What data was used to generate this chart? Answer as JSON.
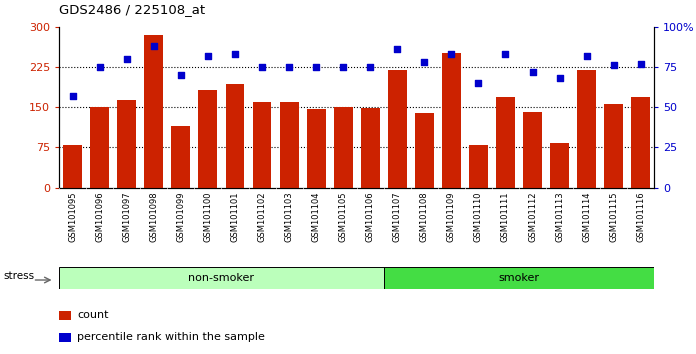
{
  "title": "GDS2486 / 225108_at",
  "samples": [
    "GSM101095",
    "GSM101096",
    "GSM101097",
    "GSM101098",
    "GSM101099",
    "GSM101100",
    "GSM101101",
    "GSM101102",
    "GSM101103",
    "GSM101104",
    "GSM101105",
    "GSM101106",
    "GSM101107",
    "GSM101108",
    "GSM101109",
    "GSM101110",
    "GSM101111",
    "GSM101112",
    "GSM101113",
    "GSM101114",
    "GSM101115",
    "GSM101116"
  ],
  "bar_values": [
    80,
    150,
    163,
    285,
    115,
    182,
    193,
    160,
    160,
    147,
    151,
    149,
    220,
    139,
    250,
    80,
    168,
    141,
    83,
    220,
    155,
    168
  ],
  "percentile_values": [
    57,
    75,
    80,
    88,
    70,
    82,
    83,
    75,
    75,
    75,
    75,
    75,
    86,
    78,
    83,
    65,
    83,
    72,
    68,
    82,
    76,
    77
  ],
  "bar_color": "#cc2200",
  "dot_color": "#0000cc",
  "ylim_left": [
    0,
    300
  ],
  "ylim_right": [
    0,
    100
  ],
  "yticks_left": [
    0,
    75,
    150,
    225,
    300
  ],
  "yticks_right": [
    0,
    25,
    50,
    75,
    100
  ],
  "ytick_labels_left": [
    "0",
    "75",
    "150",
    "225",
    "300"
  ],
  "ytick_labels_right": [
    "0",
    "25",
    "50",
    "75",
    "100%"
  ],
  "hlines": [
    75,
    150,
    225
  ],
  "non_smoker_count": 12,
  "smoker_count": 10,
  "group_labels": [
    "non-smoker",
    "smoker"
  ],
  "group_color_light": "#bbffbb",
  "group_color_dark": "#44dd44",
  "stress_label": "stress",
  "legend_items": [
    "count",
    "percentile rank within the sample"
  ],
  "background_color": "#ffffff",
  "xtick_bg": "#cccccc"
}
